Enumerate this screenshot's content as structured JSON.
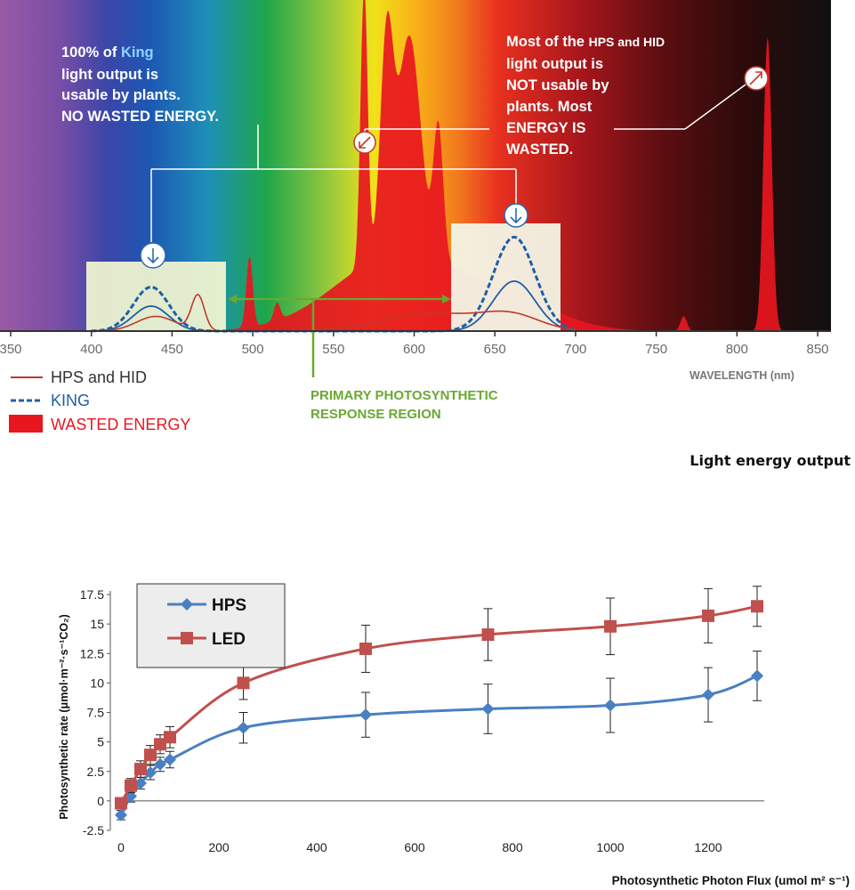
{
  "spectrum_chart": {
    "type": "area",
    "x_axis": {
      "min": 350,
      "max": 850,
      "ticks": [
        350,
        400,
        450,
        500,
        550,
        600,
        650,
        700,
        750,
        800,
        850
      ],
      "label": "WAVELENGTH (nm)"
    },
    "annotation_left": {
      "line1_a": "100% of ",
      "line1_b": "King",
      "line2": "light output is",
      "line3": "usable by plants.",
      "line4": "NO WASTED ENERGY."
    },
    "annotation_right": {
      "line1_a": "Most of the ",
      "line1_b": "HPS and HID",
      "line2": "light output is",
      "line3": "NOT usable by",
      "line4": "plants. Most",
      "line5": "ENERGY IS",
      "line6": "WASTED."
    },
    "region_label": {
      "line1": "PRIMARY PHOTOSYNTHETIC",
      "line2": "RESPONSE REGION"
    },
    "legend": [
      {
        "label": "HPS and HID",
        "color": "#c0392b",
        "style": "solid"
      },
      {
        "label": "KING",
        "color": "#1f5fa8",
        "style": "dashed"
      },
      {
        "label": "WASTED ENERGY",
        "color": "#e8161f",
        "style": "fill"
      }
    ],
    "series": {
      "king_peaks_nm": [
        437,
        662
      ],
      "hps_peaks_nm": [
        569,
        583,
        597,
        819
      ]
    }
  },
  "caption": "Light energy output",
  "chart_data": {
    "type": "line",
    "xlabel": "Photosynthetic Photon Flux (umol m² s⁻¹)",
    "ylabel": "Photosynthetic rate (μmol·m⁻²·s⁻¹CO₂)",
    "xlim": [
      0,
      1300
    ],
    "ylim": [
      -2.5,
      17.5
    ],
    "x_ticks": [
      0,
      200,
      400,
      600,
      800,
      1000,
      1200
    ],
    "y_ticks": [
      -2.5,
      0,
      2.5,
      5,
      7.5,
      10,
      12.5,
      15,
      17.5
    ],
    "y_tick_labels": [
      "-2.5",
      "0",
      "2.5",
      "5",
      "7.5",
      "10",
      "12.5",
      "15",
      "17.5"
    ],
    "legend_position": "top-left",
    "grid": false,
    "series": [
      {
        "name": "HPS",
        "color": "#4a7fc1",
        "marker": "diamond",
        "x": [
          0,
          20,
          40,
          60,
          80,
          100,
          250,
          500,
          750,
          1000,
          1200,
          1300
        ],
        "y": [
          -1.2,
          0.4,
          1.5,
          2.4,
          3.1,
          3.5,
          6.2,
          7.3,
          7.8,
          8.1,
          9.0,
          10.6
        ],
        "err": [
          0.4,
          0.5,
          0.5,
          0.6,
          0.6,
          0.7,
          1.3,
          1.9,
          2.1,
          2.3,
          2.3,
          2.1
        ]
      },
      {
        "name": "LED",
        "color": "#c0504d",
        "marker": "square",
        "x": [
          0,
          20,
          40,
          60,
          80,
          100,
          250,
          500,
          750,
          1000,
          1200,
          1300
        ],
        "y": [
          -0.2,
          1.3,
          2.7,
          3.9,
          4.8,
          5.4,
          10.0,
          12.9,
          14.1,
          14.8,
          15.7,
          16.5
        ],
        "err": [
          0.4,
          0.6,
          0.7,
          0.8,
          0.8,
          0.9,
          1.4,
          2.0,
          2.2,
          2.4,
          2.3,
          1.7
        ]
      }
    ]
  }
}
